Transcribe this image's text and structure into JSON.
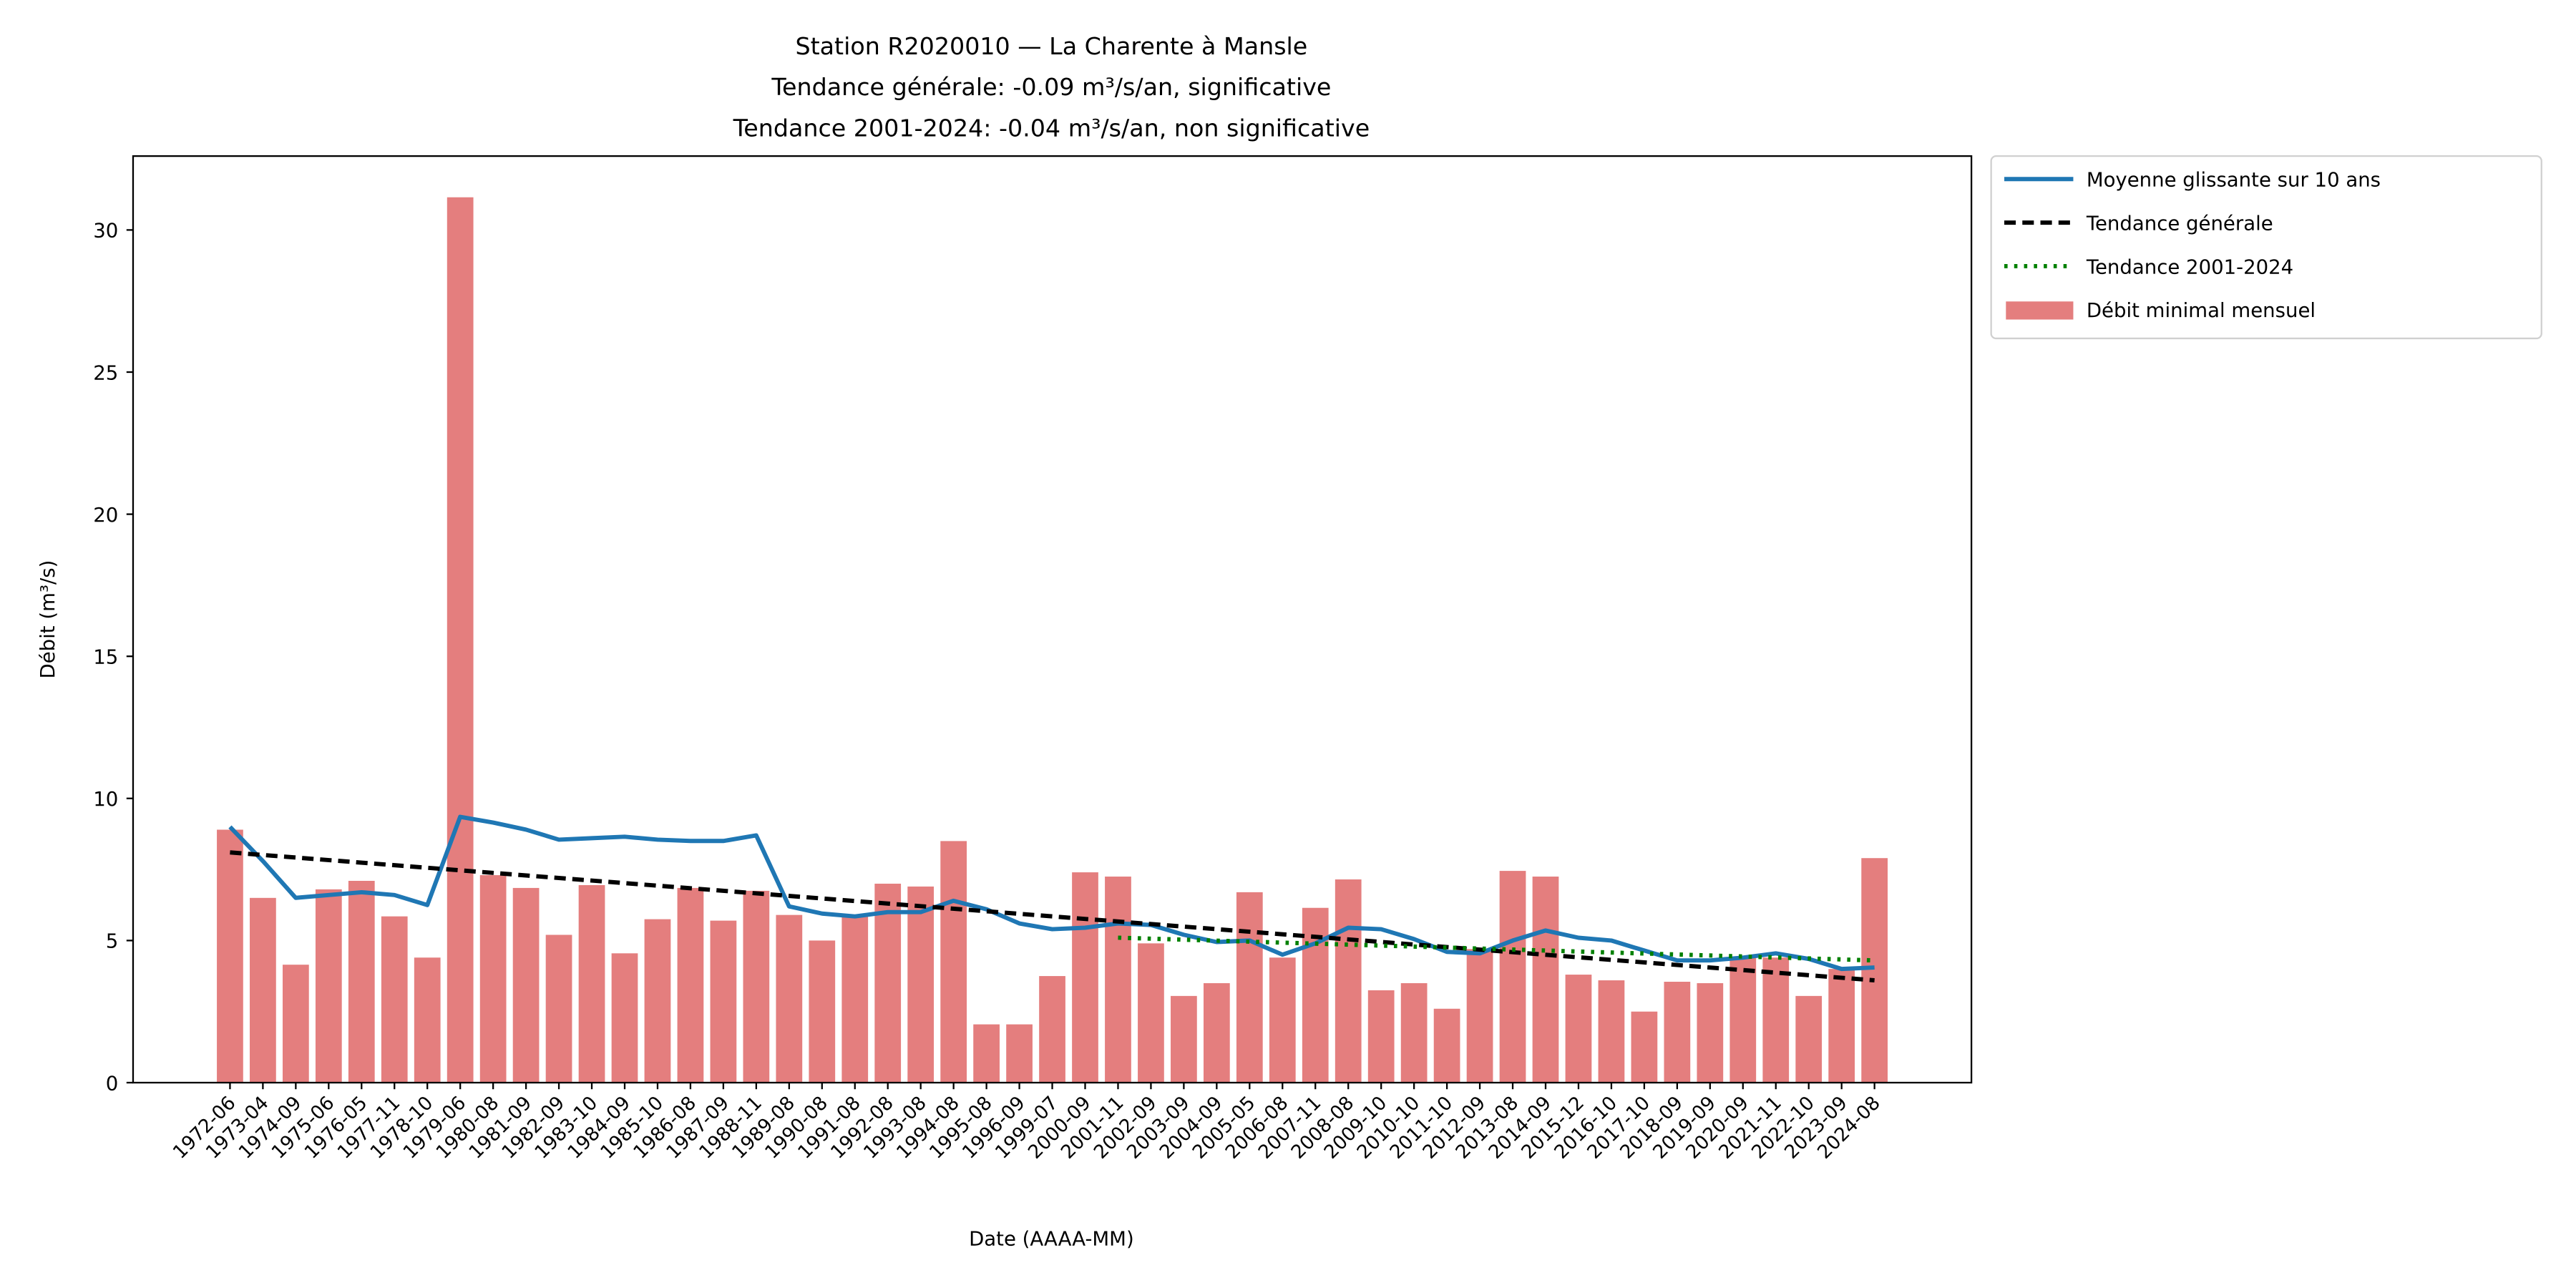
{
  "chart_data": {
    "type": "bar",
    "title_lines": [
      "Station R2020010 — La Charente à Mansle",
      "Tendance générale: -0.09 m³/s/an, significative",
      "Tendance 2001-2024: -0.04 m³/s/an, non significative"
    ],
    "xlabel": "Date (AAAA-MM)",
    "ylabel": "Débit (m³/s)",
    "ylim": [
      0,
      32.6
    ],
    "yticks": [
      0,
      5,
      10,
      15,
      20,
      25,
      30
    ],
    "grid": false,
    "legend_placement": "outside-top-right",
    "categories": [
      "1972-06",
      "1973-04",
      "1974-09",
      "1975-06",
      "1976-05",
      "1977-11",
      "1978-10",
      "1979-06",
      "1980-08",
      "1981-09",
      "1982-09",
      "1983-10",
      "1984-09",
      "1985-10",
      "1986-08",
      "1987-09",
      "1988-11",
      "1989-08",
      "1990-08",
      "1991-08",
      "1992-08",
      "1993-08",
      "1994-08",
      "1995-08",
      "1996-09",
      "1999-07",
      "2000-09",
      "2001-11",
      "2002-09",
      "2003-09",
      "2004-09",
      "2005-05",
      "2006-08",
      "2007-11",
      "2008-08",
      "2009-10",
      "2010-10",
      "2011-10",
      "2012-09",
      "2013-08",
      "2014-09",
      "2015-12",
      "2016-10",
      "2017-10",
      "2018-09",
      "2019-09",
      "2020-09",
      "2021-11",
      "2022-10",
      "2023-09",
      "2024-08"
    ],
    "series": [
      {
        "name": "Débit minimal mensuel",
        "kind": "bar",
        "color": "#e47e7e",
        "values": [
          8.9,
          6.5,
          4.15,
          6.8,
          7.1,
          5.85,
          4.4,
          31.15,
          7.3,
          6.85,
          5.2,
          6.95,
          4.55,
          5.75,
          6.85,
          5.7,
          6.75,
          5.9,
          5.0,
          5.85,
          7.0,
          6.9,
          8.5,
          2.05,
          2.05,
          3.75,
          7.4,
          7.25,
          4.9,
          3.05,
          3.5,
          6.7,
          4.4,
          6.15,
          7.15,
          3.25,
          3.5,
          2.6,
          4.7,
          7.45,
          7.25,
          3.8,
          3.6,
          2.5,
          3.55,
          3.5,
          4.4,
          4.4,
          3.05,
          4.0,
          7.9
        ]
      },
      {
        "name": "Moyenne glissante sur 10 ans",
        "kind": "line",
        "color": "#1f77b4",
        "values": [
          9.0,
          7.8,
          6.5,
          6.6,
          6.7,
          6.6,
          6.25,
          9.35,
          9.15,
          8.9,
          8.55,
          8.6,
          8.65,
          8.55,
          8.5,
          8.5,
          8.7,
          6.2,
          5.95,
          5.85,
          6.0,
          6.0,
          6.4,
          6.1,
          5.6,
          5.4,
          5.45,
          5.6,
          5.55,
          5.2,
          4.95,
          5.0,
          4.5,
          4.9,
          5.45,
          5.4,
          5.05,
          4.6,
          4.55,
          5.0,
          5.35,
          5.1,
          5.0,
          4.65,
          4.3,
          4.3,
          4.4,
          4.55,
          4.35,
          4.0,
          4.05
        ]
      },
      {
        "name": "Tendance générale",
        "kind": "trend",
        "color": "#000000",
        "style": "dashed",
        "start_index": 0,
        "end_index": 50,
        "start_value": 8.1,
        "end_value": 3.6
      },
      {
        "name": "Tendance 2001-2024",
        "kind": "trend",
        "color": "#008000",
        "style": "dotted",
        "start_index": 27,
        "end_index": 50,
        "start_value": 5.1,
        "end_value": 4.3
      }
    ],
    "legend_order": [
      1,
      2,
      3,
      0
    ]
  }
}
